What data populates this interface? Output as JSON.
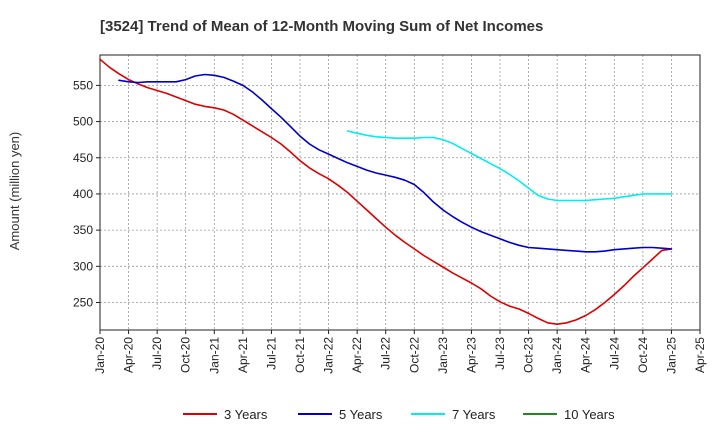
{
  "chart_data": {
    "type": "line",
    "title": "[3524]  Trend of Mean of 12-Month Moving Sum of Net Incomes",
    "ylabel": "Amount (million yen)",
    "xlabel": "",
    "ylim": [
      212,
      592
    ],
    "yticks": [
      250,
      300,
      350,
      400,
      450,
      500,
      550
    ],
    "grid": true,
    "legend_position": "bottom",
    "x_tick_labels": [
      "Jan-20",
      "Apr-20",
      "Jul-20",
      "Oct-20",
      "Jan-21",
      "Apr-21",
      "Jul-21",
      "Oct-21",
      "Jan-22",
      "Apr-22",
      "Jul-22",
      "Oct-22",
      "Jan-23",
      "Apr-23",
      "Jul-23",
      "Oct-23",
      "Jan-24",
      "Apr-24",
      "Jul-24",
      "Oct-24",
      "Jan-25",
      "Apr-25"
    ],
    "x_unit": "months since Jan-20",
    "series": [
      {
        "name": "3 Years",
        "color": "#dd0000",
        "x": [
          0,
          1,
          2,
          3,
          4,
          5,
          6,
          7,
          8,
          9,
          10,
          11,
          12,
          13,
          14,
          15,
          16,
          17,
          18,
          19,
          20,
          21,
          22,
          23,
          24,
          25,
          26,
          27,
          28,
          29,
          30,
          31,
          32,
          33,
          34,
          35,
          36,
          37,
          38,
          39,
          40,
          41,
          42,
          43,
          44,
          45,
          46,
          47,
          48,
          49,
          50,
          51,
          52,
          53,
          54,
          55,
          56,
          57,
          58,
          59,
          60
        ],
        "values": [
          586,
          575,
          566,
          558,
          552,
          547,
          543,
          539,
          534,
          529,
          524,
          521,
          519,
          516,
          510,
          502,
          494,
          486,
          478,
          469,
          458,
          446,
          436,
          428,
          421,
          412,
          402,
          390,
          378,
          366,
          354,
          343,
          333,
          324,
          315,
          307,
          299,
          291,
          284,
          277,
          269,
          259,
          251,
          245,
          241,
          235,
          228,
          222,
          220,
          222,
          226,
          232,
          240,
          250,
          261,
          273,
          286,
          298,
          310,
          322,
          324
        ]
      },
      {
        "name": "5 Years",
        "color": "#0000cc",
        "x": [
          2,
          3,
          4,
          5,
          6,
          7,
          8,
          9,
          10,
          11,
          12,
          13,
          14,
          15,
          16,
          17,
          18,
          19,
          20,
          21,
          22,
          23,
          24,
          25,
          26,
          27,
          28,
          29,
          30,
          31,
          32,
          33,
          34,
          35,
          36,
          37,
          38,
          39,
          40,
          41,
          42,
          43,
          44,
          45,
          46,
          47,
          48,
          49,
          50,
          51,
          52,
          53,
          54,
          55,
          56,
          57,
          58,
          59,
          60
        ],
        "values": [
          557,
          555,
          554,
          555,
          555,
          555,
          555,
          558,
          563,
          565,
          564,
          561,
          556,
          550,
          541,
          530,
          518,
          506,
          493,
          480,
          469,
          461,
          455,
          449,
          443,
          438,
          433,
          429,
          426,
          423,
          419,
          413,
          402,
          389,
          378,
          369,
          361,
          354,
          348,
          343,
          338,
          333,
          329,
          326,
          325,
          324,
          323,
          322,
          321,
          320,
          320,
          321,
          323,
          324,
          325,
          326,
          326,
          325,
          324
        ]
      },
      {
        "name": "7 Years",
        "color": "#00eeee",
        "x": [
          26,
          27,
          28,
          29,
          30,
          31,
          32,
          33,
          34,
          35,
          36,
          37,
          38,
          39,
          40,
          41,
          42,
          43,
          44,
          45,
          46,
          47,
          48,
          49,
          50,
          51,
          52,
          53,
          54,
          55,
          56,
          57,
          58,
          59,
          60
        ],
        "values": [
          487,
          484,
          481,
          479,
          478,
          477,
          477,
          477,
          478,
          478,
          475,
          470,
          463,
          456,
          449,
          442,
          435,
          427,
          418,
          408,
          398,
          393,
          391,
          391,
          391,
          391,
          392,
          393,
          394,
          396,
          398,
          400,
          400,
          400,
          400
        ]
      },
      {
        "name": "10 Years",
        "color": "#228822",
        "x": [],
        "values": []
      }
    ]
  }
}
